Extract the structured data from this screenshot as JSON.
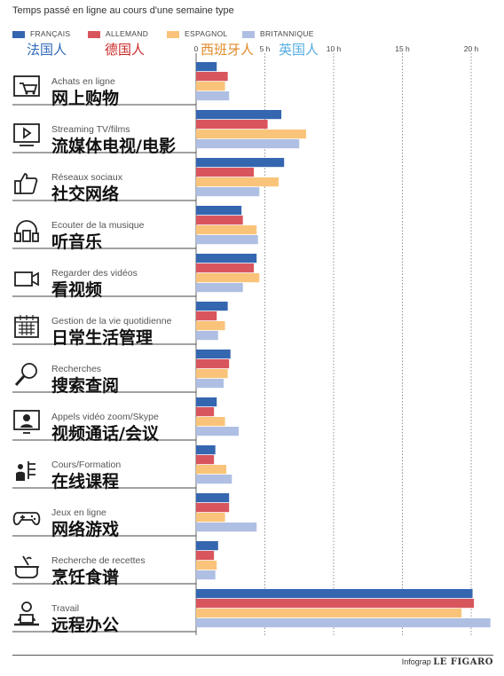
{
  "title": "Temps passé en ligne au cours d'une semaine type",
  "legend": [
    {
      "label": "FRANÇAIS",
      "zh": "法国人",
      "color": "#3566b0",
      "zh_color": "#2f6ab8"
    },
    {
      "label": "ALLEMAND",
      "zh": "德国人",
      "color": "#d9555d",
      "zh_color": "#cc2a2a"
    },
    {
      "label": "ESPAGNOL",
      "zh": "西班牙人",
      "color": "#f9c47a",
      "zh_color": "#e08a2a"
    },
    {
      "label": "BRITANNIQUE",
      "zh": "英国人",
      "color": "#aebfe3",
      "zh_color": "#55aee0"
    }
  ],
  "footer": {
    "prefix": "Infograp",
    "brand": "LE FIGARO"
  },
  "chart_data": {
    "type": "bar",
    "orientation": "horizontal",
    "xlim": [
      0,
      21
    ],
    "ticks": [
      "0",
      "5 h",
      "10 h",
      "15 h",
      "20 h"
    ],
    "grid": true,
    "categories": [
      {
        "fr": "Achats en ligne",
        "zh": "网上购物",
        "icon": "shopping-cart-icon"
      },
      {
        "fr": "Streaming TV/films",
        "zh": "流媒体电视/电影",
        "icon": "video-screen-icon"
      },
      {
        "fr": "Réseaux sociaux",
        "zh": "社交网络",
        "icon": "thumbs-up-icon"
      },
      {
        "fr": "Ecouter de la musique",
        "zh": "听音乐",
        "icon": "headphones-icon"
      },
      {
        "fr": "Regarder des vidéos",
        "zh": "看视频",
        "icon": "video-camera-icon"
      },
      {
        "fr": "Gestion de la vie quotidienne",
        "zh": "日常生活管理",
        "icon": "calendar-icon"
      },
      {
        "fr": "Recherches",
        "zh": "搜索查阅",
        "icon": "magnifier-icon"
      },
      {
        "fr": "Appels vidéo zoom/Skype",
        "zh": "视频通话/会议",
        "icon": "video-call-icon"
      },
      {
        "fr": "Cours/Formation",
        "zh": "在线课程",
        "icon": "teacher-icon"
      },
      {
        "fr": "Jeux en ligne",
        "zh": "网络游戏",
        "icon": "gamepad-icon"
      },
      {
        "fr": "Recherche de recettes",
        "zh": "烹饪食谱",
        "icon": "cooking-pot-icon"
      },
      {
        "fr": "Travail",
        "zh": "远程办公",
        "icon": "laptop-worker-icon"
      }
    ],
    "series": [
      {
        "name": "FRANÇAIS",
        "values": [
          1.5,
          6.2,
          6.4,
          3.3,
          4.4,
          2.3,
          2.5,
          1.5,
          1.4,
          2.4,
          1.6,
          20.1
        ]
      },
      {
        "name": "ALLEMAND",
        "values": [
          2.3,
          5.2,
          4.2,
          3.4,
          4.2,
          1.5,
          2.4,
          1.3,
          1.3,
          2.4,
          1.3,
          20.2
        ]
      },
      {
        "name": "ESPAGNOL",
        "values": [
          2.1,
          8.0,
          6.0,
          4.4,
          4.6,
          2.1,
          2.3,
          2.1,
          2.2,
          2.1,
          1.5,
          19.3
        ]
      },
      {
        "name": "BRITANNIQUE",
        "values": [
          2.4,
          7.5,
          4.6,
          4.5,
          3.4,
          1.6,
          2.0,
          3.1,
          2.6,
          4.4,
          1.4,
          21.4
        ]
      }
    ]
  }
}
